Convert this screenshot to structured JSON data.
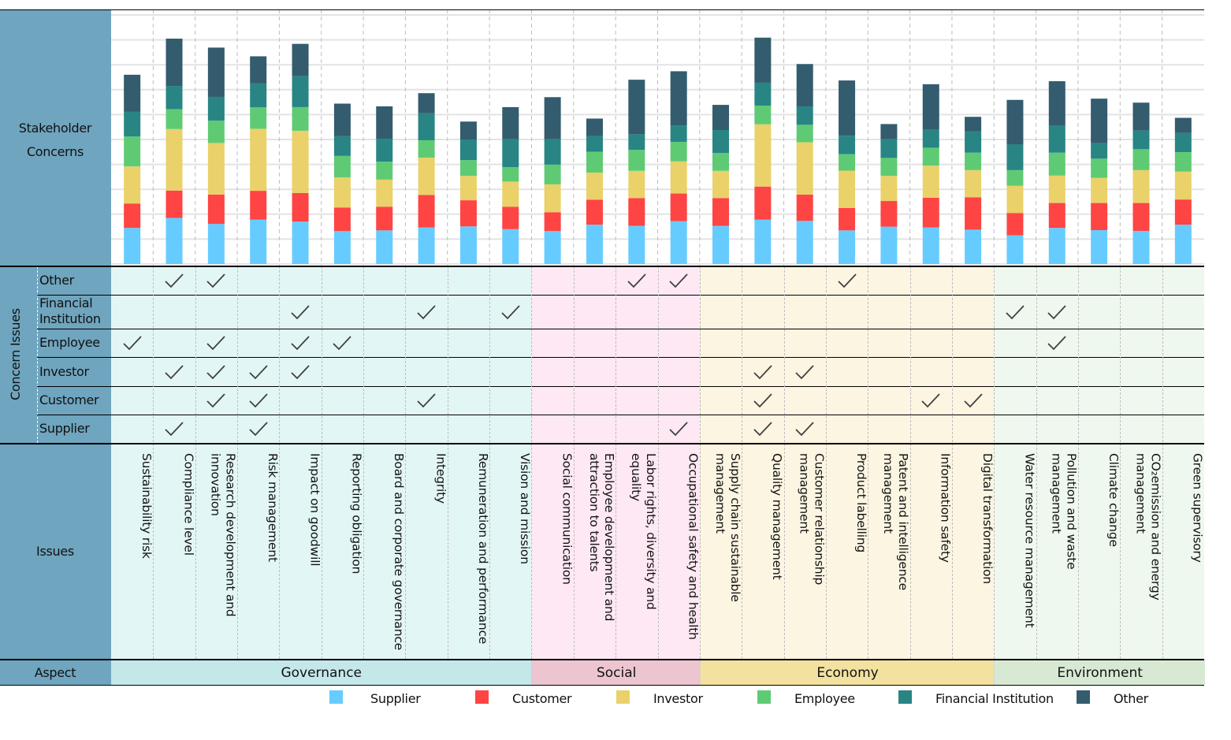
{
  "labels": {
    "stakeholder_concerns": "Stakeholder Concerns",
    "concern_issues": "Concern Issues",
    "issues": "Issues",
    "aspect": "Aspect"
  },
  "colors": {
    "Supplier": "#66ccff",
    "Customer": "#ff4444",
    "Investor": "#ead169",
    "Employee": "#5ecb74",
    "Financial Institution": "#288584",
    "Other": "#335c6e",
    "side_panel": "#6fa5bf",
    "Governance_bg": "#e3f6f6",
    "Social_bg": "#fde8f3",
    "Economy_bg": "#fbf5e2",
    "Environment_bg": "#eff8ee",
    "Governance_band": "#c4e8ea",
    "Social_band": "#ecc5d0",
    "Economy_band": "#f2e19f",
    "Environment_band": "#d8e9d3"
  },
  "concern_rows": [
    "Other",
    "Financial Institution",
    "Employee",
    "Investor",
    "Customer",
    "Supplier"
  ],
  "aspects": [
    {
      "name": "Governance",
      "count": 10
    },
    {
      "name": "Social",
      "count": 4
    },
    {
      "name": "Economy",
      "count": 7
    },
    {
      "name": "Environment",
      "count": 5
    }
  ],
  "legend": [
    "Supplier",
    "Customer",
    "Investor",
    "Employee",
    "Financial Institution",
    "Other"
  ],
  "chart_data": {
    "type": "bar",
    "stacked": true,
    "title": "Stakeholder Concerns",
    "xlabel": "Issues",
    "ylabel": "",
    "ylim": [
      0,
      10
    ],
    "grid": true,
    "legend_position": "bottom",
    "categories": [
      "Sustainability risk",
      "Compliance level",
      "Research development and innovation",
      "Risk management",
      "Impact on goodwill",
      "Reporting obligation",
      "Board and corporate governance",
      "Integrity",
      "Remuneration and performance",
      "Vision and mission",
      "Social communication",
      "Employee development and attraction to talents",
      "Labor rights, diversity and equality",
      "Occupational safety and health",
      "Supply chain sustainable management",
      "Quality management",
      "Customer relationship management",
      "Product labelling",
      "Patent and intelligence management",
      "Information safety",
      "Digital transformation",
      "Water resource management",
      "Pollution and waste management",
      "Climate change",
      "CO₂emission and energy management",
      "Green supervisory"
    ],
    "category_aspects": [
      "Governance",
      "Governance",
      "Governance",
      "Governance",
      "Governance",
      "Governance",
      "Governance",
      "Governance",
      "Governance",
      "Governance",
      "Social",
      "Social",
      "Social",
      "Social",
      "Economy",
      "Economy",
      "Economy",
      "Economy",
      "Economy",
      "Economy",
      "Economy",
      "Environment",
      "Environment",
      "Environment",
      "Environment",
      "Environment"
    ],
    "series": [
      {
        "name": "Supplier",
        "values": [
          1.45,
          1.85,
          1.61,
          1.78,
          1.7,
          1.32,
          1.35,
          1.47,
          1.51,
          1.4,
          1.32,
          1.58,
          1.53,
          1.72,
          1.53,
          1.78,
          1.73,
          1.35,
          1.5,
          1.47,
          1.38,
          1.15,
          1.45,
          1.36,
          1.33,
          1.58
        ]
      },
      {
        "name": "Customer",
        "values": [
          0.98,
          1.1,
          1.18,
          1.16,
          1.15,
          0.95,
          0.95,
          1.3,
          1.05,
          0.9,
          0.76,
          1.0,
          1.12,
          1.11,
          1.12,
          1.33,
          1.06,
          0.9,
          1.03,
          1.19,
          1.3,
          0.9,
          1.0,
          1.09,
          1.12,
          1.01
        ]
      },
      {
        "name": "Investor",
        "values": [
          1.49,
          2.47,
          2.07,
          2.49,
          2.5,
          1.21,
          1.09,
          1.5,
          0.98,
          1.01,
          1.12,
          1.09,
          1.09,
          1.29,
          1.09,
          2.5,
          2.1,
          1.5,
          1.01,
          1.29,
          1.09,
          1.09,
          1.1,
          1.01,
          1.32,
          1.12
        ]
      },
      {
        "name": "Employee",
        "values": [
          1.2,
          0.8,
          0.9,
          0.86,
          0.95,
          0.86,
          0.72,
          0.7,
          0.63,
          0.58,
          0.79,
          0.84,
          0.84,
          0.78,
          0.72,
          0.75,
          0.7,
          0.66,
          0.72,
          0.72,
          0.7,
          0.63,
          0.92,
          0.77,
          0.84,
          0.78
        ]
      },
      {
        "name": "Financial Institution",
        "values": [
          0.99,
          0.93,
          0.95,
          0.96,
          1.24,
          0.8,
          0.92,
          1.08,
          0.83,
          1.12,
          1.02,
          0.63,
          0.63,
          0.66,
          0.92,
          0.92,
          0.74,
          0.74,
          0.75,
          0.72,
          0.86,
          1.04,
          1.1,
          0.63,
          0.75,
          0.77
        ]
      },
      {
        "name": "Other",
        "values": [
          1.49,
          1.9,
          1.98,
          1.09,
          1.3,
          1.3,
          1.3,
          0.81,
          0.72,
          1.29,
          1.69,
          0.7,
          2.19,
          2.18,
          1.01,
          1.81,
          1.7,
          2.22,
          0.61,
          1.83,
          0.58,
          1.78,
          1.77,
          1.78,
          1.12,
          0.61
        ]
      }
    ]
  },
  "concern_matrix": {
    "Other": [
      2,
      3,
      13,
      14,
      18
    ],
    "Financial Institution": [
      5,
      8,
      10,
      22,
      23
    ],
    "Employee": [
      1,
      3,
      5,
      6,
      23
    ],
    "Investor": [
      2,
      3,
      4,
      5,
      16,
      17
    ],
    "Customer": [
      3,
      4,
      8,
      16,
      20,
      21
    ],
    "Supplier": [
      2,
      4,
      14,
      16,
      17
    ]
  },
  "check_symbol": "✓"
}
